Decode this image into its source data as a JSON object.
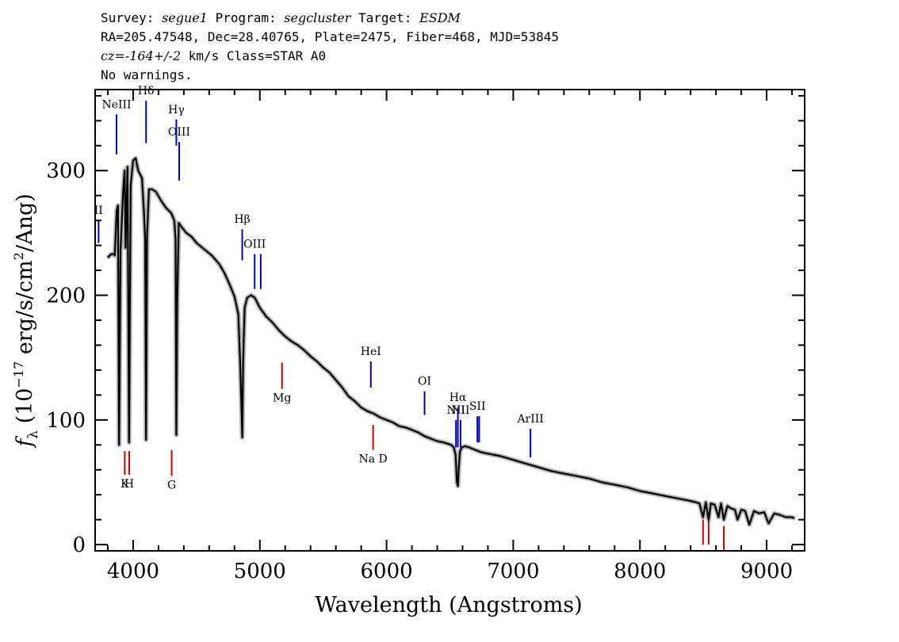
{
  "header": {
    "survey_label": "Survey:",
    "survey": "segue1",
    "program_label": "Program:",
    "program": "segcluster",
    "target_label": "Target:",
    "target": "ESDM",
    "line2": "RA=205.47548, Dec=28.40765, Plate=2475, Fiber=468, MJD=53845",
    "cz_label": "cz=",
    "cz_value": "-164+/-2",
    "cz_rest": " km/s Class=STAR A0",
    "line4": "No warnings."
  },
  "chart_data": {
    "type": "line",
    "xlabel": "Wavelength (Angstroms)",
    "ylabel": "f_λ (10^-17 erg/s/cm^2/Ang)",
    "ylabel_parts": {
      "f": "f",
      "lambda": "λ",
      "pre": " (10",
      "exp1": "−17",
      "mid": " erg/s/cm",
      "exp2": "2",
      "post": "/Ang)"
    },
    "xlim": [
      3700,
      9300
    ],
    "ylim": [
      -5,
      365
    ],
    "xticks": [
      4000,
      5000,
      6000,
      7000,
      8000,
      9000
    ],
    "yticks": [
      0,
      100,
      200,
      300
    ],
    "grid": false,
    "colors": {
      "spectrum": "#000000",
      "error_band": "#b4b4b4",
      "emission": "#0000cc",
      "absorption": "#cc0000"
    },
    "series": [
      {
        "x": [
          3800,
          3815,
          3830,
          3845,
          3855,
          3870,
          3880,
          3889,
          3900,
          3920,
          3933,
          3940,
          3955,
          3968,
          3980,
          4000,
          4020,
          4040,
          4070,
          4085,
          4095,
          4102,
          4110,
          4125,
          4150,
          4180,
          4220,
          4260,
          4300,
          4325,
          4335,
          4341,
          4348,
          4360,
          4380,
          4420,
          4460,
          4500,
          4560,
          4620,
          4680,
          4720,
          4760,
          4800,
          4830,
          4845,
          4855,
          4861,
          4868,
          4880,
          4900,
          4930,
          4960,
          5000,
          5050,
          5100,
          5150,
          5200,
          5250,
          5300,
          5350,
          5400,
          5450,
          5500,
          5550,
          5600,
          5650,
          5700,
          5750,
          5800,
          5850,
          5900,
          5950,
          6000,
          6050,
          6100,
          6150,
          6200,
          6250,
          6300,
          6350,
          6400,
          6450,
          6480,
          6510,
          6530,
          6545,
          6555,
          6563,
          6570,
          6580,
          6595,
          6620,
          6650,
          6700,
          6750,
          6800,
          6900,
          7000,
          7100,
          7200,
          7300,
          7400,
          7500,
          7600,
          7700,
          7800,
          7900,
          8000,
          8100,
          8200,
          8300,
          8400,
          8440,
          8470,
          8498,
          8520,
          8542,
          8560,
          8590,
          8620,
          8640,
          8662,
          8690,
          8720,
          8750,
          8770,
          8800,
          8830,
          8863,
          8900,
          8940,
          8980,
          9015,
          9060,
          9100,
          9150,
          9200,
          9220
        ],
        "y": [
          230,
          232,
          233,
          233,
          232,
          268,
          272,
          80,
          235,
          282,
          300,
          238,
          303,
          82,
          288,
          308,
          310,
          300,
          294,
          268,
          246,
          84,
          248,
          285,
          285,
          283,
          276,
          270,
          266,
          260,
          245,
          88,
          198,
          258,
          255,
          250,
          247,
          242,
          237,
          232,
          225,
          218,
          209,
          199,
          185,
          145,
          110,
          86,
          147,
          190,
          198,
          200,
          198,
          190,
          183,
          178,
          172,
          167,
          163,
          160,
          156,
          151,
          147,
          142,
          138,
          132,
          126,
          119,
          115,
          110,
          107,
          105,
          102,
          100,
          98,
          95,
          94,
          92,
          90,
          87,
          85,
          83,
          82,
          81,
          80,
          78,
          72,
          50,
          47,
          62,
          75,
          78,
          79,
          78,
          76,
          74,
          73,
          71,
          68,
          65,
          62,
          59,
          57,
          55,
          53,
          50,
          48,
          46,
          43,
          41,
          39,
          37,
          35,
          34,
          33,
          22,
          34,
          20,
          33,
          32,
          22,
          33,
          20,
          31,
          29,
          28,
          20,
          28,
          27,
          16,
          27,
          25,
          26,
          17,
          25,
          24,
          22,
          22,
          21
        ]
      }
    ],
    "emission_lines": [
      {
        "label": "NeIII",
        "wave": 3869,
        "y_top": 345,
        "y_bot": 313
      },
      {
        "label": "Hδ",
        "wave": 4102,
        "y_top": 356,
        "y_bot": 322
      },
      {
        "label": "Hγ",
        "wave": 4341,
        "y_top": 341,
        "y_bot": 320
      },
      {
        "label": "OIII",
        "wave": 4363,
        "y_top": 323,
        "y_bot": 292
      },
      {
        "label": "II",
        "wave": 3727,
        "y_top": 260,
        "y_bot": 242
      },
      {
        "label": "Hβ",
        "wave": 4861,
        "y_top": 253,
        "y_bot": 228
      },
      {
        "label": "OIII",
        "wave": 4959,
        "y_top": 233,
        "y_bot": 205
      },
      {
        "label": "",
        "wave": 5007,
        "y_top": 233,
        "y_bot": 205
      },
      {
        "label": "HeI",
        "wave": 5876,
        "y_top": 147,
        "y_bot": 126
      },
      {
        "label": "OI",
        "wave": 6300,
        "y_top": 123,
        "y_bot": 104
      },
      {
        "label": "NII",
        "wave": 6548,
        "y_top": 100,
        "y_bot": 78
      },
      {
        "label": "Hα",
        "wave": 6563,
        "y_top": 110,
        "y_bot": 78
      },
      {
        "label": "NII",
        "wave": 6584,
        "y_top": 100,
        "y_bot": 78
      },
      {
        "label": "SII",
        "wave": 6717,
        "y_top": 103,
        "y_bot": 82
      },
      {
        "label": "",
        "wave": 6731,
        "y_top": 103,
        "y_bot": 82
      },
      {
        "label": "ArIII",
        "wave": 7136,
        "y_top": 93,
        "y_bot": 70
      }
    ],
    "absorption_lines": [
      {
        "label": "K",
        "wave": 3934,
        "y_top": 75,
        "y_bot": 56
      },
      {
        "label": "H",
        "wave": 3969,
        "y_top": 75,
        "y_bot": 56
      },
      {
        "label": "G",
        "wave": 4304,
        "y_top": 76,
        "y_bot": 55
      },
      {
        "label": "Mg",
        "wave": 5175,
        "y_top": 146,
        "y_bot": 125
      },
      {
        "label": "Na D",
        "wave": 5894,
        "y_top": 96,
        "y_bot": 76
      },
      {
        "label": "",
        "wave": 8498,
        "y_top": 20,
        "y_bot": 0
      },
      {
        "label": "",
        "wave": 8542,
        "y_top": 20,
        "y_bot": 0
      },
      {
        "label": "",
        "wave": 8662,
        "y_top": 15,
        "y_bot": -5
      }
    ]
  }
}
